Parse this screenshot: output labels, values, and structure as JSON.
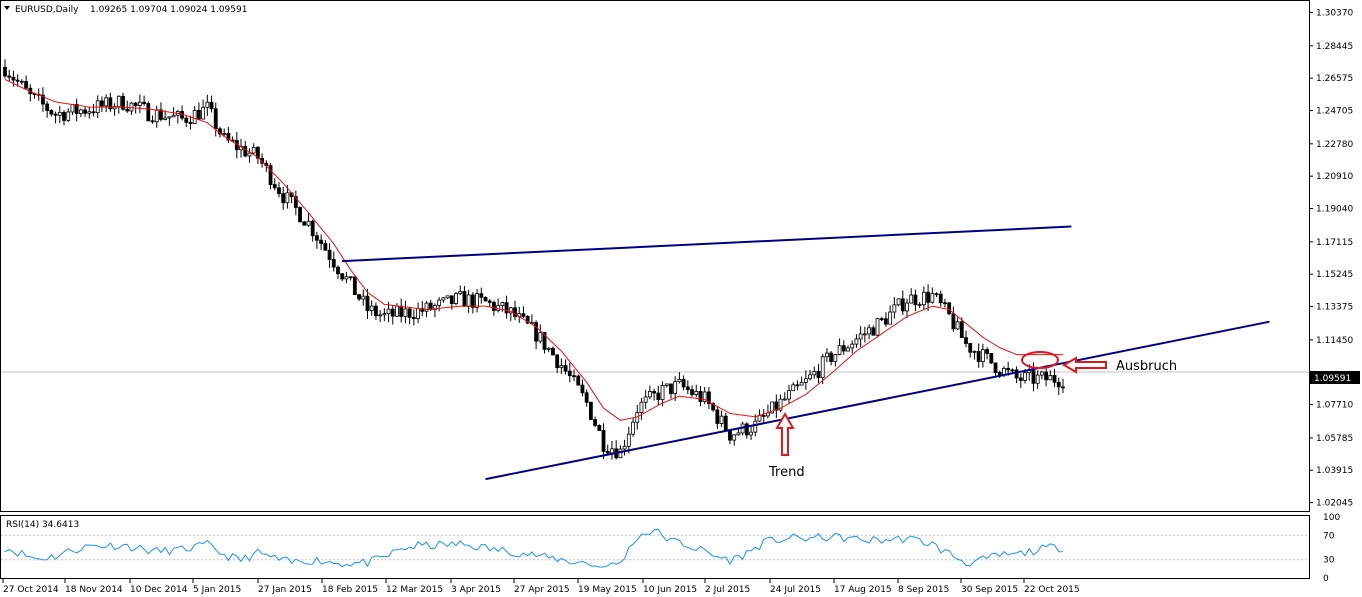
{
  "chart_data": {
    "type": "candlestick",
    "header": {
      "symbol_label": "EURUSD,Daily",
      "ohlc_label": "1.09265 1.09704 1.09024 1.09591"
    },
    "ylim": [
      1.0156,
      1.3086
    ],
    "y_ticks": [
      "1.30370",
      "1.28445",
      "1.26575",
      "1.24705",
      "1.22780",
      "1.20910",
      "1.19040",
      "1.17115",
      "1.15245",
      "1.13375",
      "1.11450",
      "1.09591",
      "1.07710",
      "1.05785",
      "1.03915",
      "1.02045"
    ],
    "current_price": 1.09591,
    "current_price_label": "1.09591",
    "x_ticks": [
      "27 Oct 2014",
      "18 Nov 2014",
      "10 Dec 2014",
      "5 Jan 2015",
      "27 Jan 2015",
      "18 Feb 2015",
      "12 Mar 2015",
      "3 Apr 2015",
      "27 Apr 2015",
      "19 May 2015",
      "10 Jun 2015",
      "2 Jul 2015",
      "24 Jul 2015",
      "17 Aug 2015",
      "8 Sep 2015",
      "30 Sep 2015",
      "22 Oct 2015"
    ],
    "bars": 252,
    "price_path": [
      [
        0,
        1.272
      ],
      [
        6,
        1.255
      ],
      [
        12,
        1.245
      ],
      [
        20,
        1.248
      ],
      [
        28,
        1.252
      ],
      [
        34,
        1.246
      ],
      [
        42,
        1.242
      ],
      [
        48,
        1.248
      ],
      [
        52,
        1.23
      ],
      [
        60,
        1.22
      ],
      [
        66,
        1.198
      ],
      [
        72,
        1.182
      ],
      [
        78,
        1.16
      ],
      [
        82,
        1.146
      ],
      [
        86,
        1.132
      ],
      [
        90,
        1.128
      ],
      [
        100,
        1.132
      ],
      [
        108,
        1.138
      ],
      [
        114,
        1.136
      ],
      [
        120,
        1.13
      ],
      [
        126,
        1.118
      ],
      [
        132,
        1.1
      ],
      [
        138,
        1.078
      ],
      [
        142,
        1.055
      ],
      [
        146,
        1.05
      ],
      [
        150,
        1.075
      ],
      [
        156,
        1.085
      ],
      [
        160,
        1.088
      ],
      [
        166,
        1.08
      ],
      [
        172,
        1.06
      ],
      [
        178,
        1.065
      ],
      [
        184,
        1.078
      ],
      [
        190,
        1.09
      ],
      [
        196,
        1.105
      ],
      [
        202,
        1.115
      ],
      [
        208,
        1.125
      ],
      [
        214,
        1.138
      ],
      [
        220,
        1.14
      ],
      [
        224,
        1.128
      ],
      [
        228,
        1.112
      ],
      [
        232,
        1.105
      ],
      [
        236,
        1.098
      ],
      [
        240,
        1.092
      ]
    ],
    "ma_path": [
      [
        0,
        1.265
      ],
      [
        6,
        1.258
      ],
      [
        12,
        1.252
      ],
      [
        20,
        1.249
      ],
      [
        28,
        1.249
      ],
      [
        34,
        1.248
      ],
      [
        42,
        1.245
      ],
      [
        48,
        1.24
      ],
      [
        52,
        1.232
      ],
      [
        60,
        1.22
      ],
      [
        66,
        1.205
      ],
      [
        72,
        1.188
      ],
      [
        78,
        1.17
      ],
      [
        82,
        1.155
      ],
      [
        86,
        1.142
      ],
      [
        90,
        1.135
      ],
      [
        100,
        1.132
      ],
      [
        108,
        1.134
      ],
      [
        114,
        1.134
      ],
      [
        120,
        1.131
      ],
      [
        126,
        1.122
      ],
      [
        132,
        1.108
      ],
      [
        138,
        1.09
      ],
      [
        142,
        1.075
      ],
      [
        146,
        1.068
      ],
      [
        150,
        1.07
      ],
      [
        156,
        1.078
      ],
      [
        160,
        1.082
      ],
      [
        166,
        1.08
      ],
      [
        172,
        1.072
      ],
      [
        178,
        1.07
      ],
      [
        184,
        1.075
      ],
      [
        190,
        1.083
      ],
      [
        196,
        1.095
      ],
      [
        202,
        1.108
      ],
      [
        208,
        1.118
      ],
      [
        214,
        1.128
      ],
      [
        220,
        1.134
      ],
      [
        224,
        1.132
      ],
      [
        228,
        1.124
      ],
      [
        232,
        1.116
      ],
      [
        236,
        1.11
      ],
      [
        240,
        1.106
      ]
    ],
    "ma_color": "#ee1111",
    "bull_color": "#ffffff",
    "bear_color": "#000000",
    "trendlines": [
      {
        "color": "#000080",
        "from": [
          80,
          1.16
        ],
        "to": [
          253,
          1.18
        ]
      },
      {
        "color": "#000080",
        "from": [
          114,
          1.034
        ],
        "to": [
          300,
          1.125
        ]
      }
    ],
    "annotations": {
      "trend_label": "Trend",
      "breakout_label": "Ausbruch",
      "marker_color": "#e0181b"
    },
    "rsi": {
      "label": "RSI(14) 34.6413",
      "ylim": [
        0,
        100
      ],
      "ticks": [
        "100",
        "70",
        "30",
        "0"
      ],
      "color": "#1e90ff"
    }
  }
}
